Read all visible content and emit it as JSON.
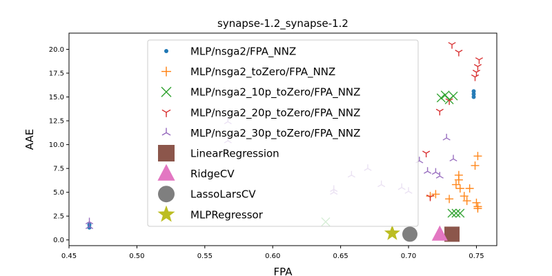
{
  "chart_data": {
    "type": "scatter",
    "title": "synapse-1.2_synapse-1.2",
    "xlabel": "FPA",
    "ylabel": "AAE",
    "xlim": [
      0.45,
      0.765
    ],
    "ylim": [
      -0.6,
      21.7
    ],
    "xticks": [
      "0.45",
      "0.50",
      "0.55",
      "0.60",
      "0.65",
      "0.70",
      "0.75"
    ],
    "xtick_values": [
      0.45,
      0.5,
      0.55,
      0.6,
      0.65,
      0.7,
      0.75
    ],
    "yticks": [
      "0.0",
      "2.5",
      "5.0",
      "7.5",
      "10.0",
      "12.5",
      "15.0",
      "17.5",
      "20.0"
    ],
    "ytick_values": [
      0.0,
      2.5,
      5.0,
      7.5,
      10.0,
      12.5,
      15.0,
      17.5,
      20.0
    ],
    "legend_position": "upper-left",
    "series": [
      {
        "name": "MLP/nsga2/FPA_NNZ",
        "marker": "dot",
        "color": "#1f77b4",
        "points": [
          [
            0.465,
            1.3
          ],
          [
            0.465,
            1.6
          ],
          [
            0.748,
            15.0
          ],
          [
            0.748,
            15.3
          ],
          [
            0.748,
            15.6
          ]
        ]
      },
      {
        "name": "MLP/nsga2_toZero/FPA_NNZ",
        "marker": "plus",
        "color": "#ff7f0e",
        "points": [
          [
            0.716,
            4.6
          ],
          [
            0.72,
            4.8
          ],
          [
            0.73,
            4.3
          ],
          [
            0.735,
            5.8
          ],
          [
            0.737,
            6.3
          ],
          [
            0.737,
            6.8
          ],
          [
            0.738,
            5.4
          ],
          [
            0.741,
            4.6
          ],
          [
            0.743,
            4.1
          ],
          [
            0.745,
            5.4
          ],
          [
            0.749,
            7.8
          ],
          [
            0.751,
            8.8
          ],
          [
            0.75,
            3.9
          ],
          [
            0.751,
            3.5
          ],
          [
            0.751,
            3.3
          ]
        ]
      },
      {
        "name": "MLP/nsga2_10p_toZero/FPA_NNZ",
        "marker": "x",
        "color": "#2ca02c",
        "points": [
          [
            0.639,
            1.9
          ],
          [
            0.724,
            14.9
          ],
          [
            0.727,
            15.2
          ],
          [
            0.73,
            14.7
          ],
          [
            0.733,
            15.1
          ],
          [
            0.732,
            2.8
          ],
          [
            0.735,
            2.8
          ],
          [
            0.738,
            2.8
          ]
        ]
      },
      {
        "name": "MLP/nsga2_20p_toZero/FPA_NNZ",
        "marker": "tri_down",
        "color": "#d62728",
        "points": [
          [
            0.713,
            9.1
          ],
          [
            0.716,
            4.5
          ],
          [
            0.723,
            13.5
          ],
          [
            0.73,
            14.6
          ],
          [
            0.732,
            20.5
          ],
          [
            0.737,
            19.7
          ],
          [
            0.749,
            17.1
          ],
          [
            0.75,
            17.6
          ],
          [
            0.751,
            18.2
          ],
          [
            0.752,
            18.9
          ]
        ]
      },
      {
        "name": "MLP/nsga2_30p_toZero/FPA_NNZ",
        "marker": "tri_up",
        "color": "#9467bd",
        "points": [
          [
            0.465,
            1.4
          ],
          [
            0.465,
            1.9
          ],
          [
            0.567,
            12.4
          ],
          [
            0.567,
            10.4
          ],
          [
            0.645,
            5.3
          ],
          [
            0.645,
            5.0
          ],
          [
            0.658,
            6.8
          ],
          [
            0.67,
            7.5
          ],
          [
            0.68,
            5.8
          ],
          [
            0.695,
            5.5
          ],
          [
            0.7,
            5.1
          ],
          [
            0.708,
            8.3
          ],
          [
            0.714,
            7.2
          ],
          [
            0.72,
            7.1
          ],
          [
            0.723,
            6.7
          ],
          [
            0.728,
            10.7
          ],
          [
            0.733,
            8.5
          ]
        ]
      }
    ],
    "models": [
      {
        "name": "LinearRegression",
        "marker": "square",
        "color": "#8c564b",
        "x": 0.732,
        "y": 0.6
      },
      {
        "name": "RidgeCV",
        "marker": "triangle",
        "color": "#e377c2",
        "x": 0.723,
        "y": 0.6
      },
      {
        "name": "LassoLarsCV",
        "marker": "circle",
        "color": "#7f7f7f",
        "x": 0.701,
        "y": 0.6
      },
      {
        "name": "MLPRegressor",
        "marker": "star",
        "color": "#bcbd22",
        "x": 0.688,
        "y": 0.7
      }
    ]
  }
}
